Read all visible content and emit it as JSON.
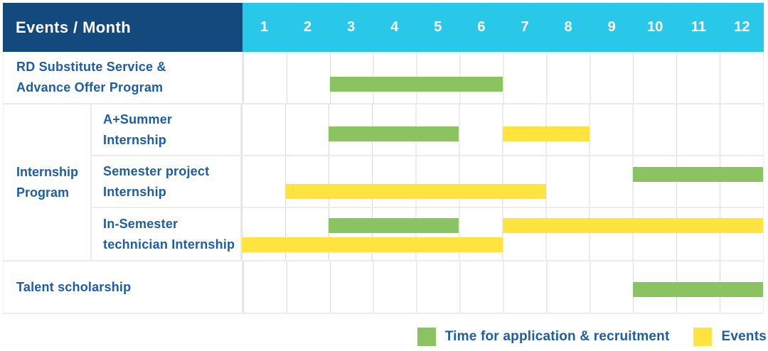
{
  "table": {
    "header": {
      "label": "Events / Month",
      "months": [
        "1",
        "2",
        "3",
        "4",
        "5",
        "6",
        "7",
        "8",
        "9",
        "10",
        "11",
        "12"
      ]
    }
  },
  "legend": {
    "items": [
      {
        "label": "Time for application & recruitment",
        "color": "green",
        "hex": "#8CC362"
      },
      {
        "label": "Events",
        "color": "yellow",
        "hex": "#FFE33F"
      }
    ]
  },
  "colors": {
    "header_bg": "#14497E",
    "months_bg": "#29C8E8",
    "bar_green": "#8CC362",
    "bar_yellow": "#FFE33F",
    "label_text": "#1D5CA6",
    "grid_line": "#DBDBDB",
    "row_border": "#EBEBEB"
  },
  "chart_data": {
    "type": "bar",
    "subtype": "gantt",
    "title": "Events / Month",
    "x_axis": {
      "label": "Month",
      "ticks": [
        "1",
        "2",
        "3",
        "4",
        "5",
        "6",
        "7",
        "8",
        "9",
        "10",
        "11",
        "12"
      ],
      "range": [
        1,
        12
      ]
    },
    "grid": true,
    "legend_position": "bottom-right",
    "series_legend": [
      "Time for application & recruitment",
      "Events"
    ],
    "rows": [
      {
        "group": null,
        "label": "RD Substitute Service & Advance Offer Program",
        "label_lines": [
          "RD Substitute Service &",
          "Advance Offer Program"
        ],
        "bars": [
          {
            "series": "Time for application & recruitment",
            "color": "green",
            "start_month": 3,
            "end_month": 6
          }
        ]
      },
      {
        "group": "Internship Program",
        "label": "A+Summer Internship",
        "label_lines": [
          "A+Summer",
          "Internship"
        ],
        "bars": [
          {
            "series": "Time for application & recruitment",
            "color": "green",
            "start_month": 3,
            "end_month": 5
          },
          {
            "series": "Events",
            "color": "yellow",
            "start_month": 7,
            "end_month": 8
          }
        ]
      },
      {
        "group": "Internship Program",
        "label": "Semester project Internship",
        "label_lines": [
          "Semester project",
          "Internship"
        ],
        "bars": [
          {
            "series": "Time for application & recruitment",
            "color": "green",
            "start_month": 10,
            "end_month": 12
          },
          {
            "series": "Events",
            "color": "yellow",
            "start_month": 2,
            "end_month": 7
          }
        ]
      },
      {
        "group": "Internship Program",
        "label": "In-Semester technician Internship",
        "label_lines": [
          "In-Semester",
          "technician Internship"
        ],
        "bars": [
          {
            "series": "Time for application & recruitment",
            "color": "green",
            "start_month": 3,
            "end_month": 5
          },
          {
            "series": "Events",
            "color": "yellow",
            "start_month": 7,
            "end_month": 12
          },
          {
            "series": "Events",
            "color": "yellow",
            "start_month": 1,
            "end_month": 6
          }
        ]
      },
      {
        "group": null,
        "label": "Talent scholarship",
        "label_lines": [
          "Talent scholarship"
        ],
        "bars": [
          {
            "series": "Time for application & recruitment",
            "color": "green",
            "start_month": 10,
            "end_month": 12
          }
        ]
      }
    ],
    "group_label": "Internship Program",
    "group_label_lines": [
      "Internship",
      "Program"
    ]
  }
}
